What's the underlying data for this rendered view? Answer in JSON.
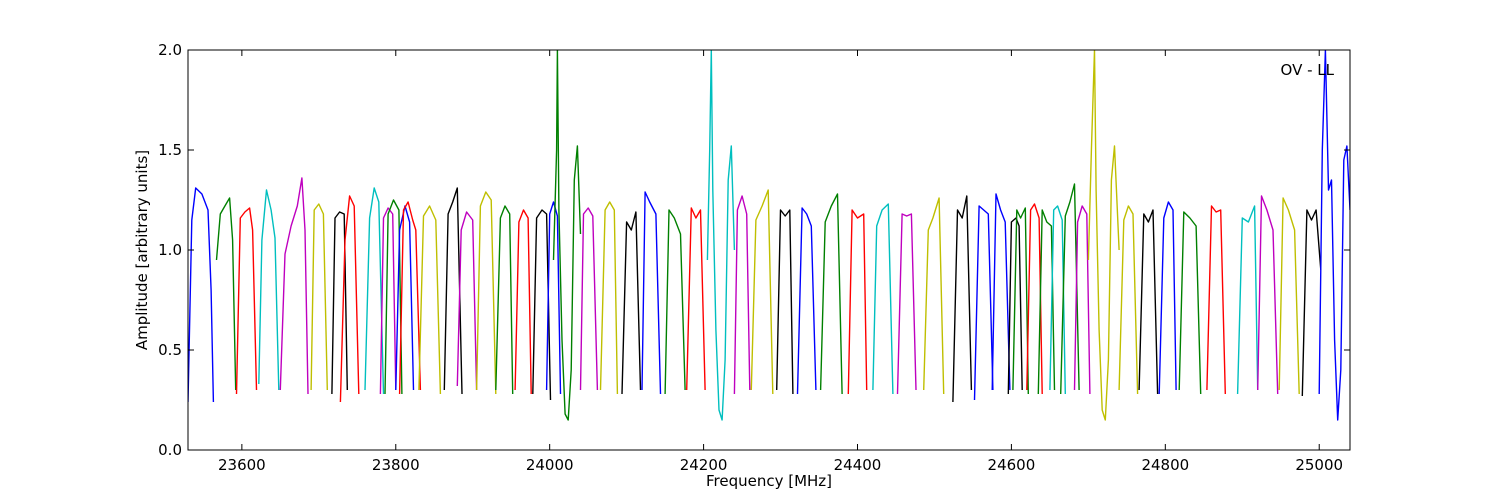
{
  "chart_data": {
    "type": "line",
    "title": "",
    "xlabel": "Frequency [MHz]",
    "ylabel": "Amplitude [arbitrary units]",
    "annotation": "OV - LL",
    "xlim": [
      23530,
      25040
    ],
    "ylim": [
      0.0,
      2.0
    ],
    "x_ticks": [
      23600,
      23800,
      24000,
      24200,
      24400,
      24600,
      24800,
      25000
    ],
    "x_tick_labels": [
      "23600",
      "23800",
      "24000",
      "24200",
      "24400",
      "24600",
      "24800",
      "25000"
    ],
    "y_ticks": [
      0.0,
      0.5,
      1.0,
      1.5,
      2.0
    ],
    "y_tick_labels": [
      "0.0",
      "0.5",
      "1.0",
      "1.5",
      "2.0"
    ],
    "grid": false,
    "legend": "none",
    "color_cycle": [
      "#0000ff",
      "#008000",
      "#ff0000",
      "#00bfbf",
      "#bf00bf",
      "#bfbf00",
      "#000000"
    ],
    "series": [
      {
        "color": "#0000ff",
        "x": [
          23530,
          23535,
          23540,
          23548,
          23556,
          23560,
          23563
        ],
        "y": [
          0.24,
          1.15,
          1.31,
          1.28,
          1.2,
          0.8,
          0.24
        ]
      },
      {
        "color": "#008000",
        "x": [
          23567,
          23572,
          23578,
          23584,
          23588,
          23592
        ],
        "y": [
          0.95,
          1.18,
          1.22,
          1.26,
          1.05,
          0.3
        ]
      },
      {
        "color": "#ff0000",
        "x": [
          23593,
          23598,
          23604,
          23610,
          23614,
          23619
        ],
        "y": [
          0.28,
          1.16,
          1.19,
          1.21,
          1.1,
          0.3
        ]
      },
      {
        "color": "#00bfbf",
        "x": [
          23622,
          23626,
          23632,
          23638,
          23643,
          23648
        ],
        "y": [
          0.33,
          1.05,
          1.3,
          1.2,
          1.06,
          0.3
        ]
      },
      {
        "color": "#bf00bf",
        "x": [
          23650,
          23656,
          23664,
          23672,
          23678,
          23682,
          23686
        ],
        "y": [
          0.3,
          0.98,
          1.12,
          1.22,
          1.36,
          1.1,
          0.28
        ]
      },
      {
        "color": "#bfbf00",
        "x": [
          23690,
          23694,
          23700,
          23706,
          23711
        ],
        "y": [
          0.3,
          1.2,
          1.23,
          1.18,
          0.3
        ]
      },
      {
        "color": "#000000",
        "x": [
          23717,
          23721,
          23727,
          23733,
          23737
        ],
        "y": [
          0.28,
          1.16,
          1.19,
          1.18,
          0.3
        ]
      },
      {
        "color": "#ff0000",
        "x": [
          23728,
          23734,
          23740,
          23746,
          23752
        ],
        "y": [
          0.24,
          1.05,
          1.27,
          1.22,
          0.28
        ]
      },
      {
        "color": "#00bfbf",
        "x": [
          23760,
          23766,
          23772,
          23778,
          23784
        ],
        "y": [
          0.3,
          1.16,
          1.31,
          1.24,
          0.28
        ]
      },
      {
        "color": "#bf00bf",
        "x": [
          23780,
          23784,
          23790,
          23796,
          23800
        ],
        "y": [
          0.28,
          1.16,
          1.21,
          1.18,
          0.3
        ]
      },
      {
        "color": "#008000",
        "x": [
          23786,
          23790,
          23797,
          23804,
          23808
        ],
        "y": [
          0.28,
          1.18,
          1.25,
          1.2,
          0.28
        ]
      },
      {
        "color": "#0000ff",
        "x": [
          23800,
          23805,
          23812,
          23818,
          23823
        ],
        "y": [
          0.3,
          1.1,
          1.22,
          1.14,
          0.3
        ]
      },
      {
        "color": "#ff0000",
        "x": [
          23805,
          23810,
          23816,
          23822,
          23826,
          23832
        ],
        "y": [
          0.28,
          1.2,
          1.24,
          1.15,
          1.1,
          0.3
        ]
      },
      {
        "color": "#bfbf00",
        "x": [
          23830,
          23836,
          23844,
          23852,
          23858
        ],
        "y": [
          0.3,
          1.17,
          1.22,
          1.15,
          0.28
        ]
      },
      {
        "color": "#000000",
        "x": [
          23863,
          23868,
          23874,
          23880,
          23886
        ],
        "y": [
          0.3,
          1.18,
          1.24,
          1.31,
          0.28
        ]
      },
      {
        "color": "#bf00bf",
        "x": [
          23880,
          23885,
          23892,
          23900,
          23905
        ],
        "y": [
          0.32,
          1.1,
          1.19,
          1.15,
          0.3
        ]
      },
      {
        "color": "#bfbf00",
        "x": [
          23905,
          23910,
          23917,
          23924,
          23930
        ],
        "y": [
          0.3,
          1.22,
          1.29,
          1.25,
          0.28
        ]
      },
      {
        "color": "#008000",
        "x": [
          23930,
          23936,
          23942,
          23948,
          23952
        ],
        "y": [
          0.3,
          1.16,
          1.22,
          1.18,
          0.28
        ]
      },
      {
        "color": "#ff0000",
        "x": [
          23955,
          23960,
          23966,
          23972,
          23976
        ],
        "y": [
          0.3,
          1.14,
          1.2,
          1.16,
          0.28
        ]
      },
      {
        "color": "#000000",
        "x": [
          23978,
          23983,
          23990,
          23996,
          24001
        ],
        "y": [
          0.28,
          1.16,
          1.2,
          1.18,
          0.25
        ]
      },
      {
        "color": "#0000ff",
        "x": [
          23996,
          24000,
          24005,
          24010,
          24014
        ],
        "y": [
          0.3,
          1.18,
          1.24,
          1.17,
          0.28
        ]
      },
      {
        "color": "#008000",
        "x": [
          24005,
          24009,
          24010,
          24012,
          24016,
          24020,
          24024,
          24028,
          24032,
          24036,
          24040
        ],
        "y": [
          0.95,
          1.5,
          2.0,
          1.2,
          0.55,
          0.18,
          0.15,
          0.4,
          1.35,
          1.52,
          1.08
        ]
      },
      {
        "color": "#bf00bf",
        "x": [
          24040,
          24044,
          24050,
          24056,
          24062
        ],
        "y": [
          0.3,
          1.18,
          1.21,
          1.17,
          0.3
        ]
      },
      {
        "color": "#bfbf00",
        "x": [
          24066,
          24072,
          24078,
          24084,
          24088
        ],
        "y": [
          0.3,
          1.2,
          1.24,
          1.2,
          0.28
        ]
      },
      {
        "color": "#000000",
        "x": [
          24094,
          24100,
          24106,
          24112,
          24118
        ],
        "y": [
          0.28,
          1.14,
          1.1,
          1.19,
          0.3
        ]
      },
      {
        "color": "#0000ff",
        "x": [
          24120,
          24124,
          24130,
          24138,
          24144
        ],
        "y": [
          0.3,
          1.29,
          1.24,
          1.18,
          0.28
        ]
      },
      {
        "color": "#008000",
        "x": [
          24150,
          24155,
          24162,
          24170,
          24176
        ],
        "y": [
          0.28,
          1.2,
          1.16,
          1.08,
          0.3
        ]
      },
      {
        "color": "#ff0000",
        "x": [
          24178,
          24184,
          24190,
          24196,
          24202
        ],
        "y": [
          0.3,
          1.21,
          1.16,
          1.2,
          0.3
        ]
      },
      {
        "color": "#00bfbf",
        "x": [
          24205,
          24208,
          24210,
          24212,
          24216,
          24220,
          24224,
          24228,
          24232,
          24236,
          24240
        ],
        "y": [
          0.95,
          1.5,
          2.0,
          1.3,
          0.6,
          0.2,
          0.15,
          0.45,
          1.35,
          1.52,
          1.0
        ]
      },
      {
        "color": "#bf00bf",
        "x": [
          24240,
          24244,
          24250,
          24256,
          24260
        ],
        "y": [
          0.28,
          1.2,
          1.27,
          1.18,
          0.3
        ]
      },
      {
        "color": "#bfbf00",
        "x": [
          24262,
          24268,
          24276,
          24284,
          24290
        ],
        "y": [
          0.3,
          1.15,
          1.22,
          1.3,
          0.28
        ]
      },
      {
        "color": "#000000",
        "x": [
          24295,
          24300,
          24306,
          24312,
          24316
        ],
        "y": [
          0.3,
          1.2,
          1.17,
          1.2,
          0.28
        ]
      },
      {
        "color": "#0000ff",
        "x": [
          24322,
          24328,
          24334,
          24340,
          24346
        ],
        "y": [
          0.28,
          1.21,
          1.18,
          1.12,
          0.3
        ]
      },
      {
        "color": "#008000",
        "x": [
          24352,
          24358,
          24366,
          24374,
          24380
        ],
        "y": [
          0.3,
          1.14,
          1.22,
          1.28,
          0.28
        ]
      },
      {
        "color": "#ff0000",
        "x": [
          24388,
          24393,
          24400,
          24408,
          24412
        ],
        "y": [
          0.28,
          1.2,
          1.16,
          1.18,
          0.3
        ]
      },
      {
        "color": "#00bfbf",
        "x": [
          24420,
          24425,
          24432,
          24440,
          24446
        ],
        "y": [
          0.3,
          1.12,
          1.2,
          1.23,
          0.28
        ]
      },
      {
        "color": "#bf00bf",
        "x": [
          24452,
          24458,
          24464,
          24470,
          24476
        ],
        "y": [
          0.28,
          1.18,
          1.17,
          1.18,
          0.3
        ]
      },
      {
        "color": "#bfbf00",
        "x": [
          24486,
          24492,
          24498,
          24506,
          24512
        ],
        "y": [
          0.3,
          1.1,
          1.16,
          1.26,
          0.28
        ]
      },
      {
        "color": "#000000",
        "x": [
          24524,
          24530,
          24536,
          24542,
          24548
        ],
        "y": [
          0.24,
          1.2,
          1.16,
          1.27,
          0.3
        ]
      },
      {
        "color": "#0000ff",
        "x": [
          24552,
          24558,
          24564,
          24570,
          24576
        ],
        "y": [
          0.25,
          1.22,
          1.2,
          1.18,
          0.3
        ]
      },
      {
        "color": "#0000ff",
        "x": [
          24575,
          24580,
          24586,
          24592,
          24598
        ],
        "y": [
          0.3,
          1.28,
          1.2,
          1.14,
          0.3
        ]
      },
      {
        "color": "#000000",
        "x": [
          24596,
          24600,
          24606,
          24610,
          24614
        ],
        "y": [
          0.28,
          1.14,
          1.16,
          1.12,
          0.3
        ]
      },
      {
        "color": "#008000",
        "x": [
          24602,
          24607,
          24612,
          24618,
          24622
        ],
        "y": [
          0.3,
          1.2,
          1.16,
          1.21,
          0.28
        ]
      },
      {
        "color": "#ff0000",
        "x": [
          24620,
          24625,
          24630,
          24636,
          24640
        ],
        "y": [
          0.3,
          1.2,
          1.23,
          1.16,
          0.28
        ]
      },
      {
        "color": "#008000",
        "x": [
          24635,
          24640,
          24646,
          24652,
          24656
        ],
        "y": [
          0.28,
          1.2,
          1.14,
          1.12,
          0.3
        ]
      },
      {
        "color": "#00bfbf",
        "x": [
          24650,
          24655,
          24660,
          24666,
          24670
        ],
        "y": [
          0.3,
          1.2,
          1.22,
          1.15,
          0.28
        ]
      },
      {
        "color": "#008000",
        "x": [
          24664,
          24670,
          24676,
          24682,
          24688
        ],
        "y": [
          0.28,
          1.17,
          1.24,
          1.33,
          0.3
        ]
      },
      {
        "color": "#bf00bf",
        "x": [
          24682,
          24686,
          24692,
          24698,
          24702
        ],
        "y": [
          0.3,
          1.14,
          1.22,
          1.18,
          0.28
        ]
      },
      {
        "color": "#bfbf00",
        "x": [
          24700,
          24704,
          24708,
          24710,
          24714,
          24718,
          24722,
          24726,
          24730,
          24734,
          24740
        ],
        "y": [
          0.95,
          1.5,
          2.0,
          1.3,
          0.6,
          0.2,
          0.15,
          0.45,
          1.35,
          1.52,
          1.0
        ]
      },
      {
        "color": "#bfbf00",
        "x": [
          24740,
          24746,
          24752,
          24758,
          24764
        ],
        "y": [
          0.3,
          1.15,
          1.22,
          1.18,
          0.28
        ]
      },
      {
        "color": "#000000",
        "x": [
          24766,
          24772,
          24778,
          24784,
          24790
        ],
        "y": [
          0.3,
          1.18,
          1.14,
          1.2,
          0.28
        ]
      },
      {
        "color": "#0000ff",
        "x": [
          24792,
          24798,
          24804,
          24810,
          24814
        ],
        "y": [
          0.28,
          1.16,
          1.24,
          1.2,
          0.3
        ]
      },
      {
        "color": "#008000",
        "x": [
          24818,
          24824,
          24832,
          24840,
          24846
        ],
        "y": [
          0.3,
          1.19,
          1.16,
          1.12,
          0.28
        ]
      },
      {
        "color": "#ff0000",
        "x": [
          24854,
          24860,
          24866,
          24872,
          24878
        ],
        "y": [
          0.3,
          1.22,
          1.19,
          1.2,
          0.28
        ]
      },
      {
        "color": "#00bfbf",
        "x": [
          24894,
          24900,
          24908,
          24916,
          24920
        ],
        "y": [
          0.28,
          1.16,
          1.14,
          1.22,
          0.3
        ]
      },
      {
        "color": "#bf00bf",
        "x": [
          24920,
          24925,
          24932,
          24940,
          24946
        ],
        "y": [
          0.3,
          1.27,
          1.2,
          1.1,
          0.28
        ]
      },
      {
        "color": "#bfbf00",
        "x": [
          24948,
          24953,
          24960,
          24968,
          24974
        ],
        "y": [
          0.3,
          1.26,
          1.2,
          1.1,
          0.28
        ]
      },
      {
        "color": "#000000",
        "x": [
          24978,
          24984,
          24990,
          24996,
          25002
        ],
        "y": [
          0.27,
          1.2,
          1.15,
          1.2,
          0.9
        ]
      },
      {
        "color": "#0000ff",
        "x": [
          25000,
          25004,
          25008,
          25012,
          25016,
          25020,
          25024,
          25028,
          25032,
          25036,
          25040
        ],
        "y": [
          0.28,
          1.5,
          2.0,
          1.3,
          1.35,
          0.55,
          0.15,
          0.4,
          1.45,
          1.52,
          1.2
        ]
      }
    ]
  }
}
